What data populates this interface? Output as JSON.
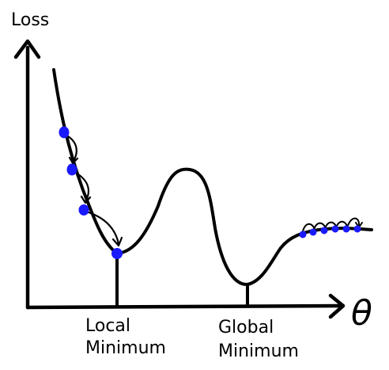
{
  "y_axis": {
    "label": "Loss"
  },
  "x_axis": {
    "label": "θ"
  },
  "annotations": {
    "local": {
      "line1": "Local",
      "line2": "Minimum"
    },
    "global": {
      "line1": "Global",
      "line2": "Minimum"
    }
  },
  "colors": {
    "line": "#000000",
    "point": "#1a1aff",
    "background": "#ffffff"
  },
  "icons": [
    "arrow-up-icon",
    "arrow-right-icon",
    "curved-arrow-icon"
  ]
}
